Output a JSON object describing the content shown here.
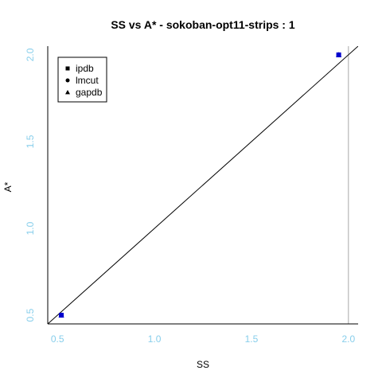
{
  "chart_data": {
    "type": "scatter",
    "title": "SS vs A* - sokoban-opt11-strips : 1",
    "xlabel": "SS",
    "ylabel": "A*",
    "xlim": [
      0.45,
      2.05
    ],
    "ylim": [
      0.45,
      2.05
    ],
    "xticks": [
      {
        "value": 0.5,
        "label": "0.5"
      },
      {
        "value": 1.0,
        "label": "1.0"
      },
      {
        "value": 1.5,
        "label": "1.5"
      },
      {
        "value": 2.0,
        "label": "2.0"
      }
    ],
    "yticks": [
      {
        "value": 0.5,
        "label": "0.5"
      },
      {
        "value": 1.0,
        "label": "1.0"
      },
      {
        "value": 1.5,
        "label": "1.5"
      },
      {
        "value": 2.0,
        "label": "2.0"
      }
    ],
    "tick_color": "#87ceeb",
    "point_color": "#0000cd",
    "vline_x": 2.0,
    "vline_color": "#aaaaaa",
    "diagonal": "y = x",
    "legend_position": "top-left",
    "series": [
      {
        "name": "ipdb",
        "marker": "square",
        "points": [
          {
            "x": 0.52,
            "y": 0.5
          },
          {
            "x": 1.95,
            "y": 2.0
          }
        ]
      },
      {
        "name": "lmcut",
        "marker": "circle",
        "points": [
          {
            "x": 0.52,
            "y": 0.5
          },
          {
            "x": 1.95,
            "y": 2.0
          }
        ]
      },
      {
        "name": "gapdb",
        "marker": "triangle",
        "points": [
          {
            "x": 0.52,
            "y": 0.5
          },
          {
            "x": 1.95,
            "y": 2.0
          }
        ]
      }
    ]
  }
}
